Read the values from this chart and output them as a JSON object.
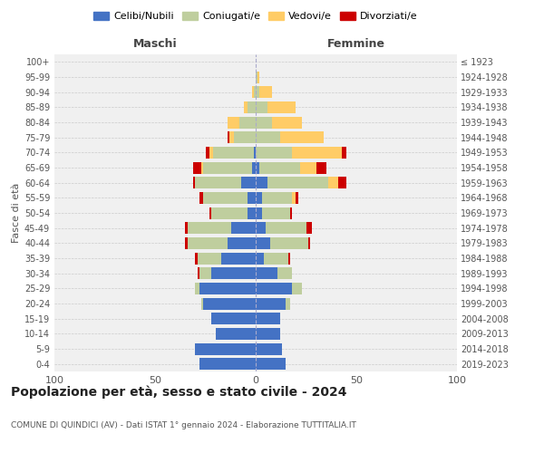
{
  "age_groups": [
    "0-4",
    "5-9",
    "10-14",
    "15-19",
    "20-24",
    "25-29",
    "30-34",
    "35-39",
    "40-44",
    "45-49",
    "50-54",
    "55-59",
    "60-64",
    "65-69",
    "70-74",
    "75-79",
    "80-84",
    "85-89",
    "90-94",
    "95-99",
    "100+"
  ],
  "birth_years": [
    "2019-2023",
    "2014-2018",
    "2009-2013",
    "2004-2008",
    "1999-2003",
    "1994-1998",
    "1989-1993",
    "1984-1988",
    "1979-1983",
    "1974-1978",
    "1969-1973",
    "1964-1968",
    "1959-1963",
    "1954-1958",
    "1949-1953",
    "1944-1948",
    "1939-1943",
    "1934-1938",
    "1929-1933",
    "1924-1928",
    "≤ 1923"
  ],
  "maschi": {
    "celibi": [
      28,
      30,
      20,
      22,
      26,
      28,
      22,
      17,
      14,
      12,
      4,
      4,
      7,
      2,
      1,
      0,
      0,
      0,
      0,
      0,
      0
    ],
    "coniugati": [
      0,
      0,
      0,
      0,
      1,
      2,
      6,
      12,
      20,
      22,
      18,
      22,
      23,
      24,
      20,
      11,
      8,
      4,
      1,
      0,
      0
    ],
    "vedovi": [
      0,
      0,
      0,
      0,
      0,
      0,
      0,
      0,
      0,
      0,
      0,
      0,
      0,
      1,
      2,
      2,
      6,
      2,
      1,
      0,
      0
    ],
    "divorziati": [
      0,
      0,
      0,
      0,
      0,
      0,
      1,
      1,
      1,
      1,
      1,
      2,
      1,
      4,
      2,
      1,
      0,
      0,
      0,
      0,
      0
    ]
  },
  "femmine": {
    "nubili": [
      15,
      13,
      12,
      12,
      15,
      18,
      11,
      4,
      7,
      5,
      3,
      3,
      6,
      2,
      0,
      0,
      0,
      0,
      0,
      0,
      0
    ],
    "coniugate": [
      0,
      0,
      0,
      0,
      2,
      5,
      7,
      12,
      19,
      20,
      14,
      15,
      30,
      20,
      18,
      12,
      8,
      6,
      2,
      1,
      0
    ],
    "vedove": [
      0,
      0,
      0,
      0,
      0,
      0,
      0,
      0,
      0,
      0,
      0,
      2,
      5,
      8,
      25,
      22,
      15,
      14,
      6,
      1,
      0
    ],
    "divorziate": [
      0,
      0,
      0,
      0,
      0,
      0,
      0,
      1,
      1,
      3,
      1,
      1,
      4,
      5,
      2,
      0,
      0,
      0,
      0,
      0,
      0
    ]
  },
  "colors": {
    "celibi": "#4472C4",
    "coniugati": "#BFCE9E",
    "vedovi": "#FFCC66",
    "divorziati": "#CC0000"
  },
  "xlim": 100,
  "title": "Popolazione per età, sesso e stato civile - 2024",
  "subtitle": "COMUNE DI QUINDICI (AV) - Dati ISTAT 1° gennaio 2024 - Elaborazione TUTTITALIA.IT",
  "ylabel_left": "Fasce di età",
  "xlabel_left": "Maschi",
  "xlabel_right": "Femmine",
  "legend_labels": [
    "Celibi/Nubili",
    "Coniugati/e",
    "Vedovi/e",
    "Divorziati/e"
  ],
  "background_color": "#ffffff",
  "plot_bg": "#f0f0f0"
}
